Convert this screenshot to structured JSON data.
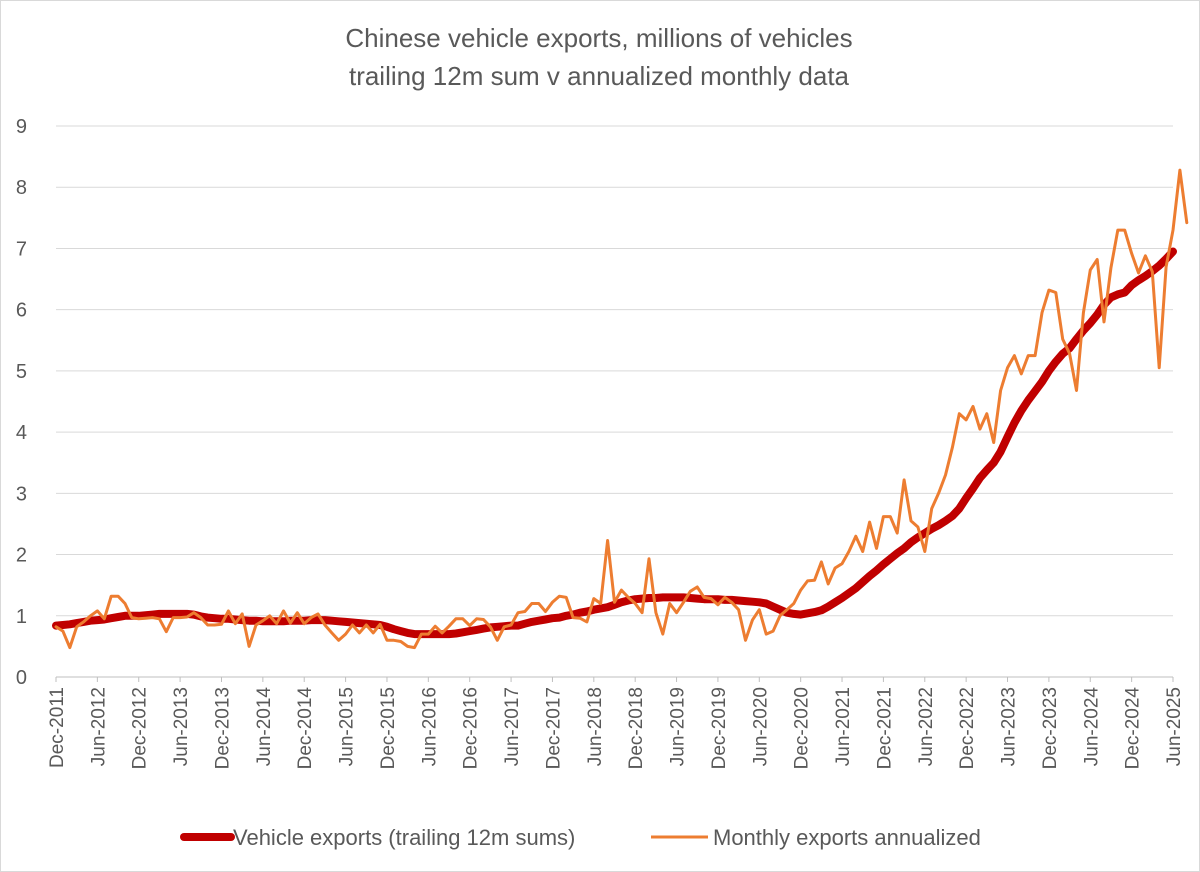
{
  "chart_data": {
    "type": "line",
    "title_lines": [
      "Chinese vehicle exports, millions of vehicles",
      "trailing 12m sum v annualized monthly data"
    ],
    "xlabel": "",
    "ylabel": "",
    "ylim": [
      0,
      9
    ],
    "yticks": [
      "0",
      "1",
      "2",
      "3",
      "4",
      "5",
      "6",
      "7",
      "8",
      "9"
    ],
    "grid": true,
    "legend_position": "bottom",
    "x_start": "Dec-2011",
    "x_end": "Jun-2025",
    "x_tick_labels": [
      "Dec-2011",
      "Jun-2012",
      "Dec-2012",
      "Jun-2013",
      "Dec-2013",
      "Jun-2014",
      "Dec-2014",
      "Jun-2015",
      "Dec-2015",
      "Jun-2016",
      "Dec-2016",
      "Jun-2017",
      "Dec-2017",
      "Jun-2018",
      "Dec-2018",
      "Jun-2019",
      "Dec-2019",
      "Jun-2020",
      "Dec-2020",
      "Jun-2021",
      "Dec-2021",
      "Jun-2022",
      "Dec-2022",
      "Jun-2023",
      "Dec-2023",
      "Jun-2024",
      "Dec-2024",
      "Jun-2025"
    ],
    "series": [
      {
        "name": "Vehicle exports (trailing 12m sums)",
        "color": "#c00000",
        "values": [
          0.84,
          0.85,
          0.86,
          0.88,
          0.9,
          0.92,
          0.93,
          0.94,
          0.96,
          0.98,
          1.0,
          1.0,
          1.0,
          1.01,
          1.02,
          1.03,
          1.03,
          1.03,
          1.03,
          1.03,
          1.02,
          0.99,
          0.97,
          0.96,
          0.95,
          0.95,
          0.94,
          0.93,
          0.92,
          0.92,
          0.91,
          0.91,
          0.91,
          0.91,
          0.92,
          0.92,
          0.92,
          0.93,
          0.93,
          0.93,
          0.92,
          0.91,
          0.9,
          0.89,
          0.88,
          0.87,
          0.86,
          0.85,
          0.82,
          0.78,
          0.75,
          0.72,
          0.7,
          0.7,
          0.7,
          0.7,
          0.7,
          0.7,
          0.71,
          0.73,
          0.75,
          0.77,
          0.79,
          0.81,
          0.82,
          0.83,
          0.84,
          0.84,
          0.87,
          0.9,
          0.92,
          0.94,
          0.96,
          0.97,
          1.0,
          1.02,
          1.05,
          1.07,
          1.1,
          1.12,
          1.14,
          1.18,
          1.22,
          1.25,
          1.27,
          1.28,
          1.29,
          1.29,
          1.3,
          1.3,
          1.3,
          1.3,
          1.29,
          1.28,
          1.27,
          1.27,
          1.27,
          1.26,
          1.26,
          1.25,
          1.24,
          1.23,
          1.22,
          1.2,
          1.15,
          1.1,
          1.05,
          1.03,
          1.02,
          1.04,
          1.06,
          1.09,
          1.15,
          1.22,
          1.29,
          1.37,
          1.45,
          1.55,
          1.65,
          1.74,
          1.84,
          1.93,
          2.02,
          2.1,
          2.2,
          2.28,
          2.35,
          2.42,
          2.48,
          2.55,
          2.63,
          2.75,
          2.92,
          3.08,
          3.25,
          3.38,
          3.5,
          3.68,
          3.92,
          4.15,
          4.35,
          4.52,
          4.67,
          4.82,
          5.0,
          5.15,
          5.28,
          5.37,
          5.52,
          5.66,
          5.78,
          5.92,
          6.08,
          6.2,
          6.25,
          6.28,
          6.4,
          6.48,
          6.55,
          6.63,
          6.72,
          6.83,
          6.95
        ]
      },
      {
        "name": "Monthly exports annualized",
        "color": "#ed7d31",
        "values": [
          0.82,
          0.75,
          0.48,
          0.82,
          0.9,
          1.0,
          1.08,
          0.95,
          1.32,
          1.32,
          1.2,
          0.97,
          0.95,
          0.96,
          0.97,
          0.95,
          0.74,
          0.97,
          0.97,
          0.98,
          1.05,
          0.97,
          0.85,
          0.85,
          0.86,
          1.08,
          0.87,
          1.03,
          0.5,
          0.85,
          0.92,
          1.0,
          0.87,
          1.08,
          0.88,
          1.05,
          0.87,
          0.97,
          1.03,
          0.85,
          0.72,
          0.6,
          0.7,
          0.85,
          0.72,
          0.85,
          0.72,
          0.86,
          0.6,
          0.6,
          0.58,
          0.5,
          0.48,
          0.7,
          0.7,
          0.83,
          0.72,
          0.83,
          0.95,
          0.95,
          0.84,
          0.95,
          0.94,
          0.82,
          0.6,
          0.82,
          0.85,
          1.05,
          1.07,
          1.2,
          1.2,
          1.07,
          1.22,
          1.32,
          1.3,
          0.97,
          0.96,
          0.9,
          1.28,
          1.2,
          2.23,
          1.22,
          1.42,
          1.3,
          1.2,
          1.05,
          1.93,
          1.05,
          0.7,
          1.2,
          1.05,
          1.22,
          1.4,
          1.47,
          1.3,
          1.28,
          1.18,
          1.3,
          1.22,
          1.1,
          0.6,
          0.93,
          1.1,
          0.7,
          0.75,
          1.0,
          1.1,
          1.2,
          1.42,
          1.57,
          1.58,
          1.88,
          1.52,
          1.78,
          1.85,
          2.05,
          2.3,
          2.05,
          2.53,
          2.1,
          2.62,
          2.62,
          2.35,
          3.22,
          2.55,
          2.45,
          2.05,
          2.75,
          3.0,
          3.3,
          3.75,
          4.3,
          4.2,
          4.42,
          4.05,
          4.3,
          3.83,
          4.68,
          5.05,
          5.25,
          4.95,
          5.25,
          5.25,
          5.95,
          6.32,
          6.28,
          5.52,
          5.28,
          4.68,
          5.95,
          6.65,
          6.82,
          5.8,
          6.68,
          7.3,
          7.3,
          6.92,
          6.6,
          6.88,
          6.62,
          5.05,
          6.7,
          7.3,
          8.28,
          7.42
        ]
      }
    ]
  }
}
